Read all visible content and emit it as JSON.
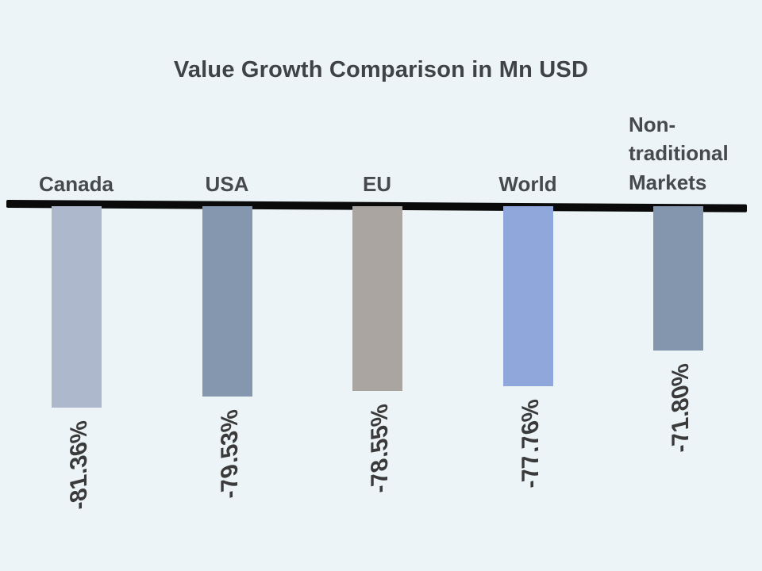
{
  "chart_data": {
    "type": "bar",
    "title": "Value Growth Comparison in Mn USD",
    "orientation": "vertical-negative",
    "unit": "percent",
    "categories": [
      "Canada",
      "USA",
      "EU",
      "World",
      "Non-traditional Markets"
    ],
    "values": [
      -81.36,
      -79.53,
      -78.55,
      -77.76,
      -71.8
    ],
    "value_labels": [
      "-81.36%",
      "-79.53%",
      "-78.55%",
      "-77.76%",
      "-71.80%"
    ],
    "bar_colors": [
      "#aeb8cd",
      "#8497af",
      "#aba5a1",
      "#8fa7db",
      "#8496ae"
    ],
    "baseline_value": 0,
    "baseline_color": "#0a0a0a",
    "background_color": "#ecf4f7",
    "title_color": "#3f4247",
    "label_color": "#3a3a3a",
    "grid": false,
    "legend": "none",
    "value_label_rotation": "vertical"
  }
}
